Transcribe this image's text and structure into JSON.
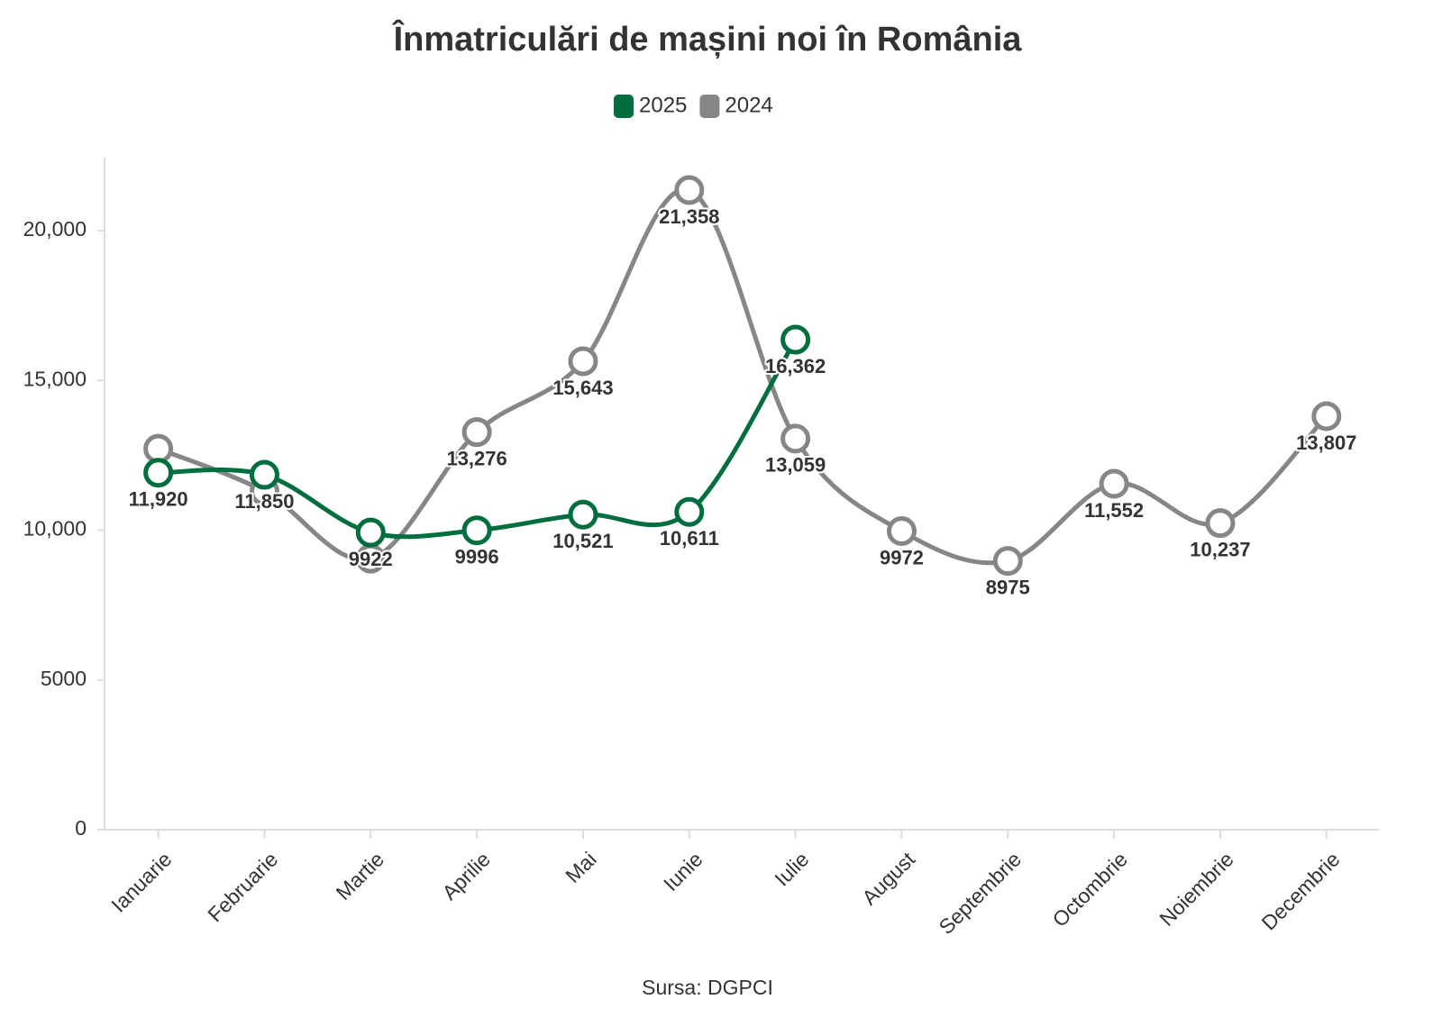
{
  "chart_data": {
    "type": "line",
    "title": "Înmatriculări de mașini noi în România",
    "source": "Sursa: DGPCI",
    "categories": [
      "Ianuarie",
      "Februarie",
      "Martie",
      "Aprilie",
      "Mai",
      "Iunie",
      "Iulie",
      "August",
      "Septembrie",
      "Octombrie",
      "Noiembrie",
      "Decembrie"
    ],
    "series": [
      {
        "name": "2025",
        "color": "#006d3f",
        "values": [
          11920,
          11850,
          9922,
          9996,
          10521,
          10611,
          16362,
          null,
          null,
          null,
          null,
          null
        ],
        "value_labels": [
          "11,920",
          "11,850",
          "9922",
          "9996",
          "10,521",
          "10,611",
          "16,362",
          null,
          null,
          null,
          null,
          null
        ]
      },
      {
        "name": "2024",
        "color": "#868686",
        "values": [
          12720,
          11300,
          9050,
          13276,
          15643,
          21358,
          13059,
          9972,
          8975,
          11552,
          10237,
          13807
        ],
        "value_labels": [
          null,
          null,
          null,
          "13,276",
          "15,643",
          "21,358",
          "13,059",
          "9972",
          "8975",
          "11,552",
          "10,237",
          "13,807"
        ]
      }
    ],
    "ylim": [
      0,
      22500
    ],
    "yticks": [
      0,
      5000,
      {
        "value": 10000,
        "label": "10,000"
      },
      {
        "value": 15000,
        "label": "15,000"
      },
      {
        "value": 20000,
        "label": "20,000"
      }
    ],
    "grid": false
  }
}
